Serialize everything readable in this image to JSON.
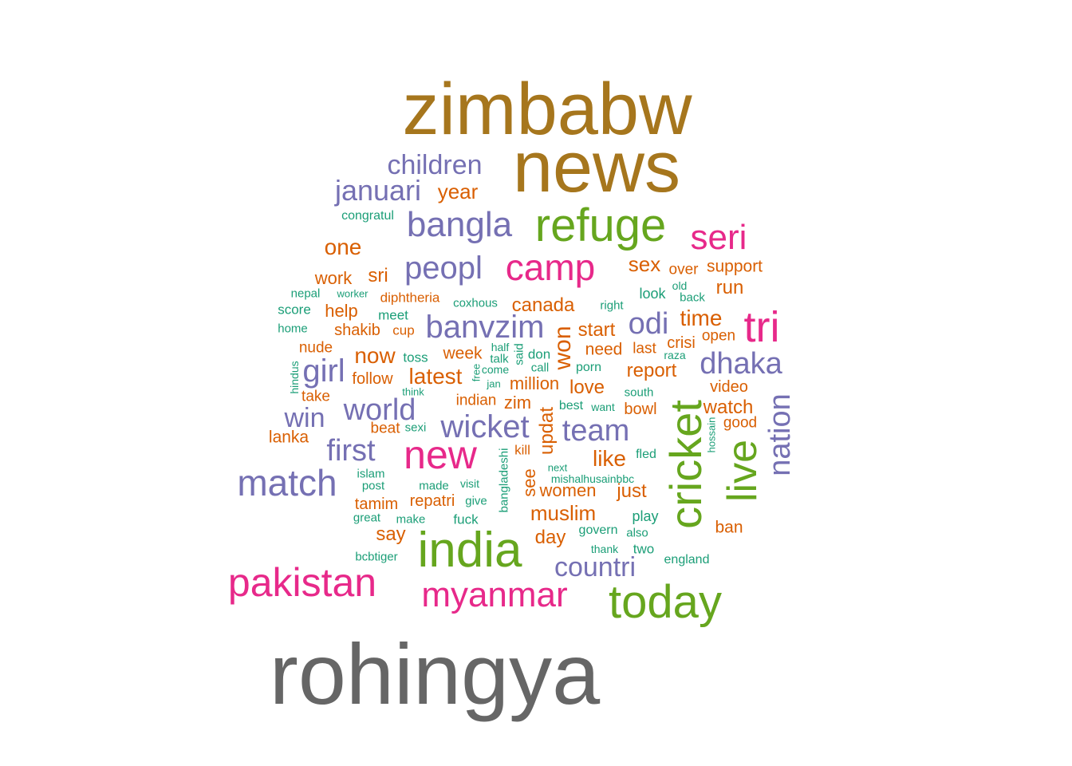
{
  "palette": {
    "gray": "#666666",
    "gold": "#A6761D",
    "green": "#66A61E",
    "magenta": "#E7298A",
    "purple": "#7570B3",
    "orange": "#D95F02",
    "teal": "#1B9E77"
  },
  "words": [
    {
      "text": "rohingya",
      "color": "gray"
    },
    {
      "text": "zimbabw",
      "color": "gold"
    },
    {
      "text": "news",
      "color": "gold"
    },
    {
      "text": "refuge",
      "color": "green"
    },
    {
      "text": "india",
      "color": "green"
    },
    {
      "text": "today",
      "color": "green"
    },
    {
      "text": "cricket",
      "color": "green"
    },
    {
      "text": "live",
      "color": "green"
    },
    {
      "text": "camp",
      "color": "magenta"
    },
    {
      "text": "new",
      "color": "magenta"
    },
    {
      "text": "seri",
      "color": "magenta"
    },
    {
      "text": "tri",
      "color": "magenta"
    },
    {
      "text": "pakistan",
      "color": "magenta"
    },
    {
      "text": "myanmar",
      "color": "magenta"
    },
    {
      "text": "children",
      "color": "purple"
    },
    {
      "text": "januari",
      "color": "purple"
    },
    {
      "text": "bangla",
      "color": "purple"
    },
    {
      "text": "peopl",
      "color": "purple"
    },
    {
      "text": "banvzim",
      "color": "purple"
    },
    {
      "text": "odi",
      "color": "purple"
    },
    {
      "text": "dhaka",
      "color": "purple"
    },
    {
      "text": "girl",
      "color": "purple"
    },
    {
      "text": "world",
      "color": "purple"
    },
    {
      "text": "win",
      "color": "purple"
    },
    {
      "text": "wicket",
      "color": "purple"
    },
    {
      "text": "team",
      "color": "purple"
    },
    {
      "text": "first",
      "color": "purple"
    },
    {
      "text": "match",
      "color": "purple"
    },
    {
      "text": "nation",
      "color": "purple"
    },
    {
      "text": "countri",
      "color": "purple"
    },
    {
      "text": "year",
      "color": "orange"
    },
    {
      "text": "one",
      "color": "orange"
    },
    {
      "text": "sex",
      "color": "orange"
    },
    {
      "text": "over",
      "color": "orange"
    },
    {
      "text": "support",
      "color": "orange"
    },
    {
      "text": "work",
      "color": "orange"
    },
    {
      "text": "sri",
      "color": "orange"
    },
    {
      "text": "run",
      "color": "orange"
    },
    {
      "text": "help",
      "color": "orange"
    },
    {
      "text": "diphtheria",
      "color": "orange"
    },
    {
      "text": "canada",
      "color": "orange"
    },
    {
      "text": "time",
      "color": "orange"
    },
    {
      "text": "shakib",
      "color": "orange"
    },
    {
      "text": "cup",
      "color": "orange"
    },
    {
      "text": "start",
      "color": "orange"
    },
    {
      "text": "open",
      "color": "orange"
    },
    {
      "text": "nude",
      "color": "orange"
    },
    {
      "text": "now",
      "color": "orange"
    },
    {
      "text": "week",
      "color": "orange"
    },
    {
      "text": "need",
      "color": "orange"
    },
    {
      "text": "last",
      "color": "orange"
    },
    {
      "text": "crisi",
      "color": "orange"
    },
    {
      "text": "won",
      "color": "orange"
    },
    {
      "text": "follow",
      "color": "orange"
    },
    {
      "text": "latest",
      "color": "orange"
    },
    {
      "text": "report",
      "color": "orange"
    },
    {
      "text": "million",
      "color": "orange"
    },
    {
      "text": "take",
      "color": "orange"
    },
    {
      "text": "indian",
      "color": "orange"
    },
    {
      "text": "zim",
      "color": "orange"
    },
    {
      "text": "love",
      "color": "orange"
    },
    {
      "text": "video",
      "color": "orange"
    },
    {
      "text": "bowl",
      "color": "orange"
    },
    {
      "text": "watch",
      "color": "orange"
    },
    {
      "text": "beat",
      "color": "orange"
    },
    {
      "text": "good",
      "color": "orange"
    },
    {
      "text": "lanka",
      "color": "orange"
    },
    {
      "text": "updat",
      "color": "orange"
    },
    {
      "text": "kill",
      "color": "orange"
    },
    {
      "text": "like",
      "color": "orange"
    },
    {
      "text": "see",
      "color": "orange"
    },
    {
      "text": "women",
      "color": "orange"
    },
    {
      "text": "just",
      "color": "orange"
    },
    {
      "text": "tamim",
      "color": "orange"
    },
    {
      "text": "repatri",
      "color": "orange"
    },
    {
      "text": "muslim",
      "color": "orange"
    },
    {
      "text": "say",
      "color": "orange"
    },
    {
      "text": "day",
      "color": "orange"
    },
    {
      "text": "ban",
      "color": "orange"
    },
    {
      "text": "congratul",
      "color": "teal"
    },
    {
      "text": "old",
      "color": "teal"
    },
    {
      "text": "back",
      "color": "teal"
    },
    {
      "text": "nepal",
      "color": "teal"
    },
    {
      "text": "worker",
      "color": "teal"
    },
    {
      "text": "look",
      "color": "teal"
    },
    {
      "text": "score",
      "color": "teal"
    },
    {
      "text": "coxhous",
      "color": "teal"
    },
    {
      "text": "right",
      "color": "teal"
    },
    {
      "text": "meet",
      "color": "teal"
    },
    {
      "text": "home",
      "color": "teal"
    },
    {
      "text": "half",
      "color": "teal"
    },
    {
      "text": "talk",
      "color": "teal"
    },
    {
      "text": "said",
      "color": "teal"
    },
    {
      "text": "don",
      "color": "teal"
    },
    {
      "text": "raza",
      "color": "teal"
    },
    {
      "text": "toss",
      "color": "teal"
    },
    {
      "text": "come",
      "color": "teal"
    },
    {
      "text": "call",
      "color": "teal"
    },
    {
      "text": "porn",
      "color": "teal"
    },
    {
      "text": "hindus",
      "color": "teal"
    },
    {
      "text": "free",
      "color": "teal"
    },
    {
      "text": "jan",
      "color": "teal"
    },
    {
      "text": "think",
      "color": "teal"
    },
    {
      "text": "south",
      "color": "teal"
    },
    {
      "text": "best",
      "color": "teal"
    },
    {
      "text": "want",
      "color": "teal"
    },
    {
      "text": "sexi",
      "color": "teal"
    },
    {
      "text": "hossain",
      "color": "teal"
    },
    {
      "text": "bangladeshi",
      "color": "teal"
    },
    {
      "text": "fled",
      "color": "teal"
    },
    {
      "text": "next",
      "color": "teal"
    },
    {
      "text": "islam",
      "color": "teal"
    },
    {
      "text": "post",
      "color": "teal"
    },
    {
      "text": "mishalhusainbbc",
      "color": "teal"
    },
    {
      "text": "made",
      "color": "teal"
    },
    {
      "text": "visit",
      "color": "teal"
    },
    {
      "text": "give",
      "color": "teal"
    },
    {
      "text": "great",
      "color": "teal"
    },
    {
      "text": "make",
      "color": "teal"
    },
    {
      "text": "fuck",
      "color": "teal"
    },
    {
      "text": "play",
      "color": "teal"
    },
    {
      "text": "govern",
      "color": "teal"
    },
    {
      "text": "also",
      "color": "teal"
    },
    {
      "text": "thank",
      "color": "teal"
    },
    {
      "text": "two",
      "color": "teal"
    },
    {
      "text": "bcbtiger",
      "color": "teal"
    },
    {
      "text": "england",
      "color": "teal"
    }
  ]
}
